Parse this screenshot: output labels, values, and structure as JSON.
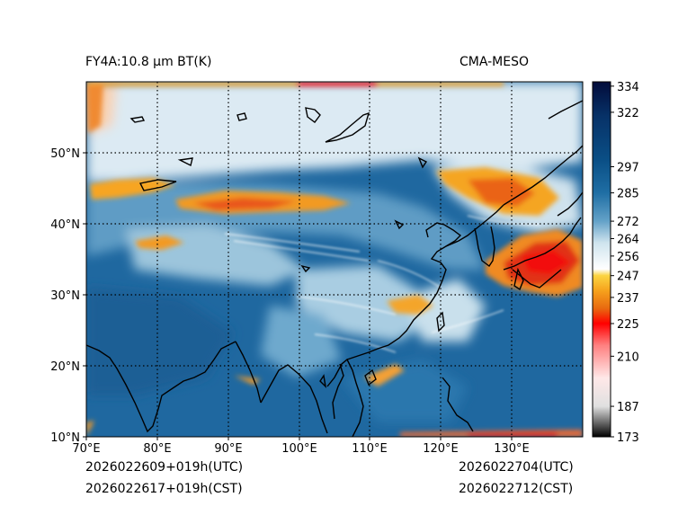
{
  "header": {
    "product_label": "FY4A:10.8 µm BT(K)",
    "model_label": "CMA-MESO"
  },
  "footer": {
    "init_time_utc": "2026022609+019h(UTC)",
    "init_time_cst": "2026022617+019h(CST)",
    "valid_time_utc": "2026022704(UTC)",
    "valid_time_cst": "2026022712(CST)"
  },
  "map": {
    "lon_range": [
      70,
      140
    ],
    "lat_range": [
      10,
      60
    ],
    "lon_ticks": [
      "70°E",
      "80°E",
      "90°E",
      "100°E",
      "110°E",
      "120°E",
      "130°E"
    ],
    "lat_ticks": [
      "10°N",
      "20°N",
      "30°N",
      "40°N",
      "50°N"
    ]
  },
  "colorbar": {
    "ticks": [
      "334",
      "322",
      "297",
      "285",
      "272",
      "264",
      "256",
      "247",
      "237",
      "225",
      "210",
      "187",
      "173"
    ],
    "range": [
      173,
      336
    ],
    "stops": [
      {
        "value": 173,
        "color": "#000000"
      },
      {
        "value": 187,
        "color": "#e0e0e0"
      },
      {
        "value": 200,
        "color": "#ffe8e8"
      },
      {
        "value": 215,
        "color": "#ff8080"
      },
      {
        "value": 225,
        "color": "#ff0000"
      },
      {
        "value": 232,
        "color": "#e86a10"
      },
      {
        "value": 240,
        "color": "#f6a11c"
      },
      {
        "value": 247,
        "color": "#fbd441"
      },
      {
        "value": 250,
        "color": "#ffffff"
      },
      {
        "value": 262,
        "color": "#cfe4ee"
      },
      {
        "value": 272,
        "color": "#64a2c8"
      },
      {
        "value": 285,
        "color": "#1f6ea4"
      },
      {
        "value": 300,
        "color": "#0a4f86"
      },
      {
        "value": 320,
        "color": "#073268"
      },
      {
        "value": 336,
        "color": "#020b3a"
      }
    ]
  },
  "colors": {
    "ocean_warm": "#1f68a0",
    "land_mid": "#3f86b8",
    "cloud_light": "#dbeaf2",
    "cloud_cold": "#f6a11c",
    "cloud_deep": "#e8501a",
    "coast": "#000000"
  }
}
